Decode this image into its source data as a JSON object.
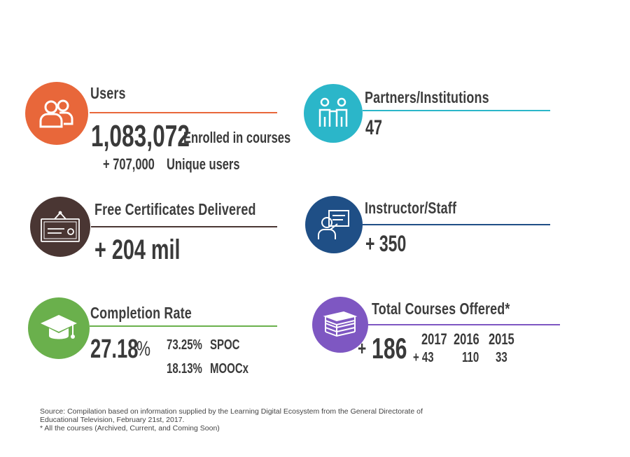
{
  "colors": {
    "users": "#e8673a",
    "partners": "#2bb6c9",
    "certificates": "#4a3633",
    "instructors": "#1f4f86",
    "completion": "#6ab04c",
    "courses": "#7e57c2",
    "text": "#3a3a3a"
  },
  "users": {
    "icon": "users-icon",
    "title": "Users",
    "enrolled_value": "1,083,072",
    "enrolled_label": "Enrolled in courses",
    "unique_value": "+ 707,000",
    "unique_label": "Unique users"
  },
  "partners": {
    "icon": "partners-icon",
    "title": "Partners/Institutions",
    "value": "47"
  },
  "certificates": {
    "icon": "certificate-icon",
    "title": "Free Certificates Delivered",
    "value": "+ 204 mil"
  },
  "instructors": {
    "icon": "instructor-icon",
    "title": "Instructor/Staff",
    "value": "+ 350"
  },
  "completion": {
    "icon": "graduation-cap-icon",
    "title": "Completion Rate",
    "value": "27.18",
    "percent_sign": "%",
    "spoc_value": "73.25%",
    "spoc_label": "SPOC",
    "moocx_value": "18.13%",
    "moocx_label": "MOOCx"
  },
  "courses": {
    "icon": "books-icon",
    "title": "Total Courses Offered*",
    "plus": "+",
    "value": "186",
    "years": [
      {
        "year": "2017",
        "value": "+ 43"
      },
      {
        "year": "2016",
        "value": "110"
      },
      {
        "year": "2015",
        "value": "33"
      }
    ]
  },
  "source": {
    "line1": "Source: Compilation based on information supplied by the Learning Digital Ecosystem from the General Directorate of",
    "line2": "Educational Television, February 21st, 2017.",
    "line3": "* All the courses (Archived, Current, and Coming Soon)"
  }
}
